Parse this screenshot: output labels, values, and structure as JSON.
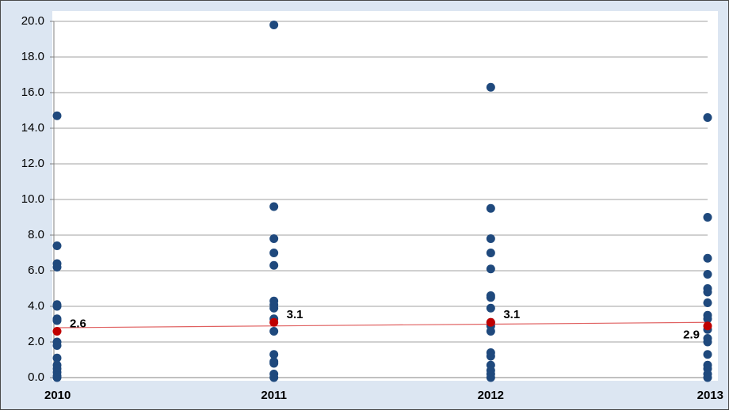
{
  "chart_data": {
    "type": "scatter",
    "xlim": [
      2010,
      2013
    ],
    "xticks": [
      2010,
      2011,
      2012,
      2013
    ],
    "ylim": [
      0,
      20
    ],
    "yticks": [
      {
        "value": 0,
        "label": "0.0"
      },
      {
        "value": 2,
        "label": "2.0"
      },
      {
        "value": 4,
        "label": "4.0"
      },
      {
        "value": 6,
        "label": "6.0"
      },
      {
        "value": 8,
        "label": "8.0"
      },
      {
        "value": 10,
        "label": "10.0"
      },
      {
        "value": 12,
        "label": "12.0"
      },
      {
        "value": 14,
        "label": "14.0"
      },
      {
        "value": 16,
        "label": "16.0"
      },
      {
        "value": 18,
        "label": "18.0"
      },
      {
        "value": 20,
        "label": "20.0"
      }
    ],
    "grid": true,
    "point_color": "#1f497d",
    "groups": [
      {
        "x": 2010,
        "values": [
          14.7,
          7.4,
          6.4,
          6.2,
          4.1,
          4.0,
          3.3,
          3.2,
          2.0,
          1.8,
          1.1,
          0.7,
          0.5,
          0.3,
          0.1,
          0.0
        ]
      },
      {
        "x": 2011,
        "values": [
          19.8,
          9.6,
          7.8,
          7.0,
          6.3,
          4.3,
          4.1,
          3.9,
          3.3,
          2.6,
          1.3,
          0.9,
          0.8,
          0.2,
          0.0
        ]
      },
      {
        "x": 2012,
        "values": [
          16.3,
          9.5,
          7.8,
          7.0,
          6.1,
          4.6,
          4.5,
          3.9,
          3.1,
          2.9,
          2.6,
          1.4,
          1.2,
          0.7,
          0.4,
          0.2,
          0.0
        ]
      },
      {
        "x": 2013,
        "values": [
          14.6,
          9.0,
          6.7,
          5.8,
          5.0,
          4.8,
          4.2,
          3.5,
          3.3,
          2.7,
          2.2,
          2.0,
          1.3,
          0.7,
          0.5,
          0.2,
          0.0
        ]
      }
    ],
    "means": {
      "x": [
        2010,
        2011,
        2012,
        2013
      ],
      "values": [
        2.6,
        3.1,
        3.1,
        2.9
      ],
      "color": "#c00000"
    },
    "trend": {
      "x": [
        2010,
        2013
      ],
      "values": [
        2.8,
        3.1
      ],
      "color": "#e06060"
    }
  }
}
